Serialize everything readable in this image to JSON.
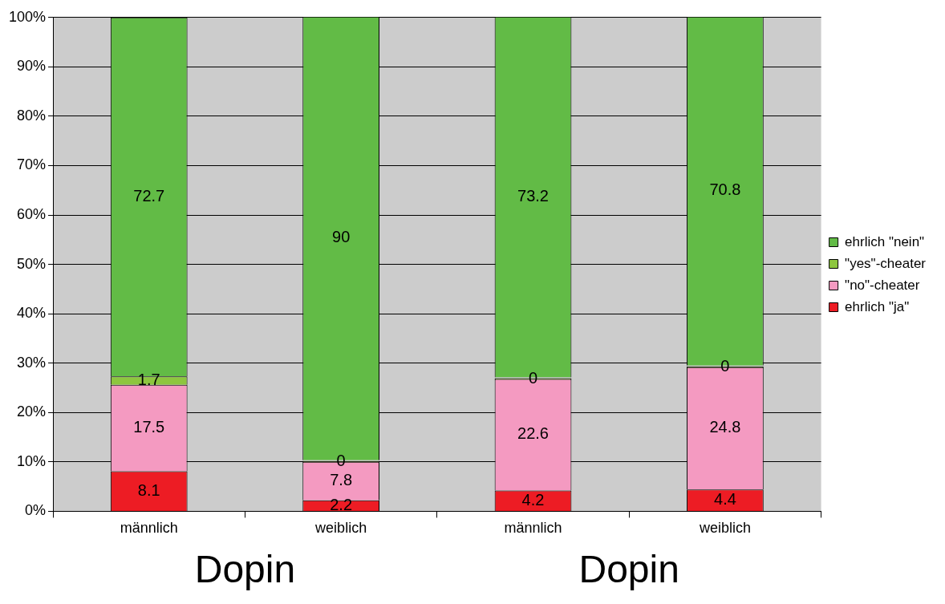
{
  "chart_data": {
    "type": "bar",
    "stacked": true,
    "categories": [
      "männlich",
      "weiblich",
      "männlich",
      "weiblich"
    ],
    "series": [
      {
        "name": "ehrlich \"ja\"",
        "color": "#ed1c24",
        "values": [
          8.1,
          2.2,
          4.2,
          4.4
        ]
      },
      {
        "name": "\"no\"-cheater",
        "color": "#f49ac1",
        "values": [
          17.5,
          7.8,
          22.6,
          24.8
        ]
      },
      {
        "name": "\"yes\"-cheater",
        "color": "#8dc63f",
        "values": [
          1.7,
          0,
          0,
          0
        ]
      },
      {
        "name": "ehrlich \"nein\"",
        "color": "#62bb46",
        "values": [
          72.7,
          90,
          73.2,
          70.8
        ]
      }
    ],
    "ylim": [
      0,
      100
    ],
    "yticks": [
      {
        "value": 0,
        "label": "0%"
      },
      {
        "value": 10,
        "label": "10%"
      },
      {
        "value": 20,
        "label": "20%"
      },
      {
        "value": 30,
        "label": "30%"
      },
      {
        "value": 40,
        "label": "40%"
      },
      {
        "value": 50,
        "label": "50%"
      },
      {
        "value": 60,
        "label": "60%"
      },
      {
        "value": 70,
        "label": "70%"
      },
      {
        "value": 80,
        "label": "80%"
      },
      {
        "value": 90,
        "label": "90%"
      },
      {
        "value": 100,
        "label": "100%"
      }
    ],
    "grid": "y",
    "legend": "right",
    "data_labels": true,
    "annotations": [
      "Dopin",
      "Dopin"
    ]
  }
}
